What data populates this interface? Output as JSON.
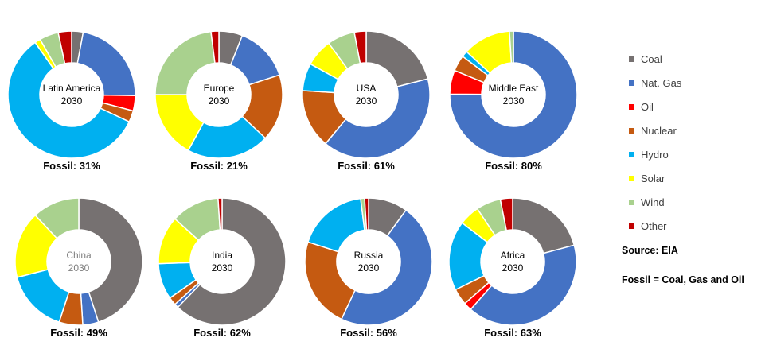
{
  "categories": [
    "Coal",
    "Nat. Gas",
    "Oil",
    "Nuclear",
    "Hydro",
    "Solar",
    "Wind",
    "Other"
  ],
  "colors": {
    "Coal": "#767171",
    "Nat. Gas": "#4472C4",
    "Oil": "#FF0000",
    "Nuclear": "#C55A11",
    "Hydro": "#00B0F0",
    "Solar": "#FFFF00",
    "Wind": "#A9D18E",
    "Other": "#C00000"
  },
  "chart_data": [
    {
      "type": "pie",
      "region": "Latin America",
      "year": "2030",
      "fossil": "Fossil: 31%",
      "categories": [
        "Coal",
        "Nat. Gas",
        "Oil",
        "Nuclear",
        "Hydro",
        "Solar",
        "Wind",
        "Other"
      ],
      "values": [
        3,
        23,
        4,
        3,
        60,
        1.5,
        5,
        3.5
      ]
    },
    {
      "type": "pie",
      "region": "Europe",
      "year": "2030",
      "fossil": "Fossil: 21%",
      "categories": [
        "Coal",
        "Nat. Gas",
        "Oil",
        "Nuclear",
        "Hydro",
        "Solar",
        "Wind",
        "Other"
      ],
      "values": [
        6,
        14,
        0,
        17,
        21,
        17,
        23,
        2
      ]
    },
    {
      "type": "pie",
      "region": "USA",
      "year": "2030",
      "fossil": "Fossil: 61%",
      "categories": [
        "Coal",
        "Nat. Gas",
        "Oil",
        "Nuclear",
        "Hydro",
        "Solar",
        "Wind",
        "Other"
      ],
      "values": [
        21,
        40,
        0,
        15,
        7,
        7,
        7,
        3
      ]
    },
    {
      "type": "pie",
      "region": "Middle East",
      "year": "2030",
      "fossil": "Fossil: 80%",
      "categories": [
        "Coal",
        "Nat. Gas",
        "Oil",
        "Nuclear",
        "Hydro",
        "Solar",
        "Wind",
        "Other"
      ],
      "values": [
        0,
        74,
        6,
        4,
        1.5,
        12,
        1,
        0
      ]
    },
    {
      "type": "pie",
      "region": "China",
      "year": "2030",
      "fossil": "Fossil: 49%",
      "categories": [
        "Coal",
        "Nat. Gas",
        "Oil",
        "Nuclear",
        "Hydro",
        "Solar",
        "Wind",
        "Other"
      ],
      "values": [
        45,
        4,
        0,
        6,
        16,
        17,
        12,
        0
      ]
    },
    {
      "type": "pie",
      "region": "India",
      "year": "2030",
      "fossil": "Fossil: 62%",
      "categories": [
        "Coal",
        "Nat. Gas",
        "Oil",
        "Nuclear",
        "Hydro",
        "Solar",
        "Wind",
        "Other"
      ],
      "values": [
        61,
        1,
        0,
        2,
        9,
        12,
        12,
        1
      ]
    },
    {
      "type": "pie",
      "region": "Russia",
      "year": "2030",
      "fossil": "Fossil: 56%",
      "categories": [
        "Coal",
        "Nat. Gas",
        "Oil",
        "Nuclear",
        "Hydro",
        "Solar",
        "Wind",
        "Other"
      ],
      "values": [
        10,
        47,
        0,
        23,
        18,
        0,
        1,
        1
      ]
    },
    {
      "type": "pie",
      "region": "Africa",
      "year": "2030",
      "fossil": "Fossil: 63%",
      "categories": [
        "Coal",
        "Nat. Gas",
        "Oil",
        "Nuclear",
        "Hydro",
        "Solar",
        "Wind",
        "Other"
      ],
      "values": [
        20,
        39,
        2,
        4,
        17,
        5,
        6,
        3
      ]
    }
  ],
  "legend": [
    "Coal",
    "Nat. Gas",
    "Oil",
    "Nuclear",
    "Hydro",
    "Solar",
    "Wind",
    "Other"
  ],
  "source": "Source: EIA",
  "fossil_note": "Fossil = Coal,  Gas and Oil"
}
